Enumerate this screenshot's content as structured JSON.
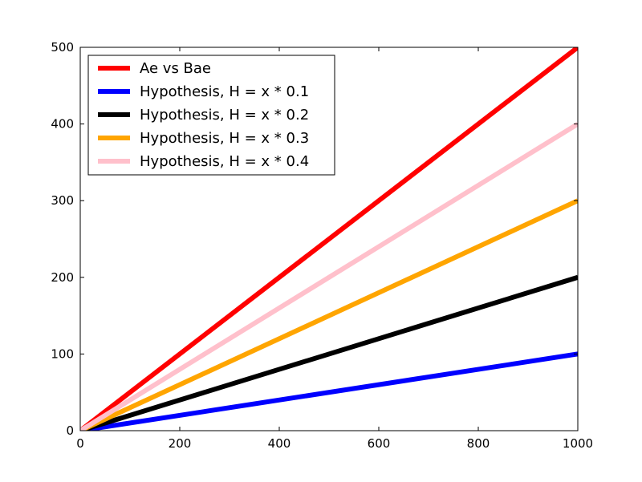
{
  "chart_data": {
    "type": "line",
    "title": "",
    "xlabel": "",
    "ylabel": "",
    "xlim": [
      0,
      1000
    ],
    "ylim": [
      0,
      500
    ],
    "xticks": [
      0,
      200,
      400,
      600,
      800,
      1000
    ],
    "yticks": [
      0,
      100,
      200,
      300,
      400,
      500
    ],
    "grid": false,
    "legend": {
      "placement": "top-left"
    },
    "series": [
      {
        "name": "Ae vs Bae",
        "color": "#ff0000",
        "x": [
          0,
          1000
        ],
        "y": [
          0,
          500
        ]
      },
      {
        "name": "Hypothesis, H = x * 0.1",
        "color": "#0000ff",
        "x": [
          0,
          1000
        ],
        "y": [
          0,
          100
        ]
      },
      {
        "name": "Hypothesis, H = x * 0.2",
        "color": "#000000",
        "x": [
          0,
          1000
        ],
        "y": [
          0,
          200
        ]
      },
      {
        "name": "Hypothesis, H = x * 0.3",
        "color": "#ffa500",
        "x": [
          0,
          1000
        ],
        "y": [
          0,
          300
        ]
      },
      {
        "name": "Hypothesis, H = x * 0.4",
        "color": "#ffc0cb",
        "x": [
          0,
          1000
        ],
        "y": [
          0,
          400
        ]
      }
    ]
  }
}
